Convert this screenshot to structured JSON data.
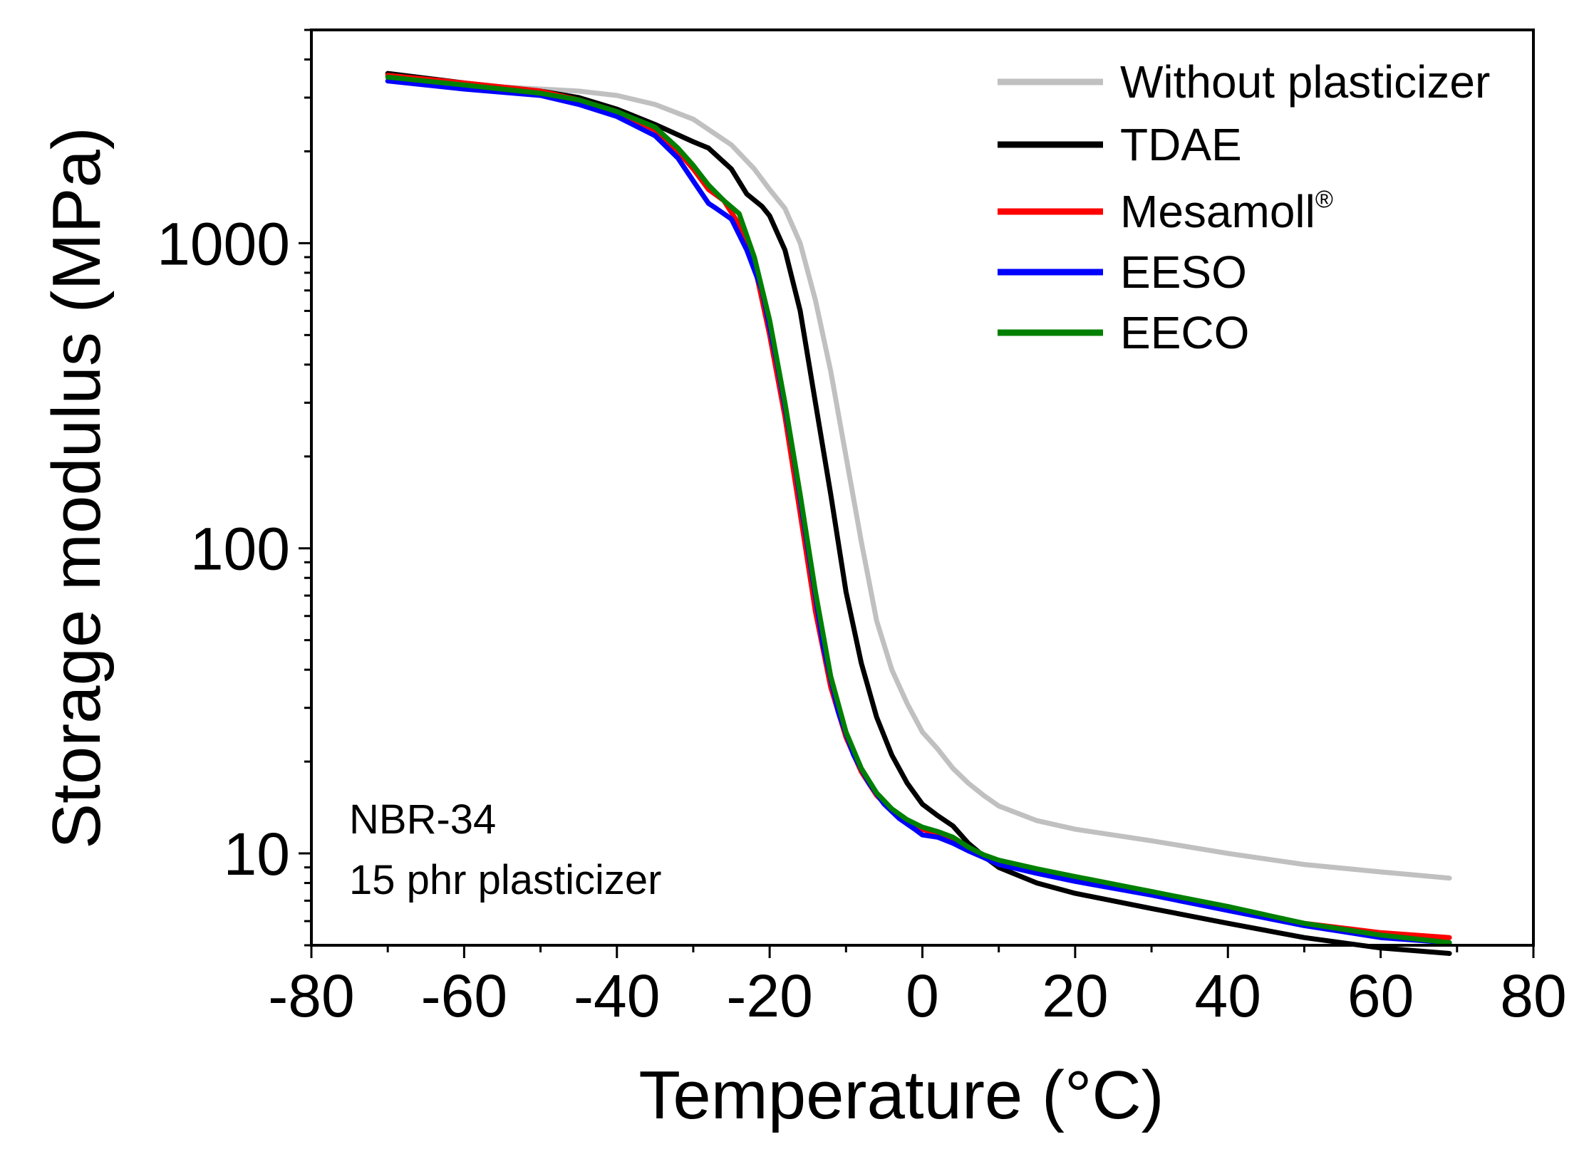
{
  "chart_data": {
    "type": "line",
    "title": "",
    "xlabel": "Temperature (°C)",
    "ylabel": "Storage modulus (MPa)",
    "xlim": [
      -80,
      80
    ],
    "ylim": [
      5,
      5000
    ],
    "yscale": "log",
    "x_ticks": [
      "-80",
      "-60",
      "-40",
      "-20",
      "0",
      "20",
      "40",
      "60",
      "80"
    ],
    "y_ticks": [
      "10",
      "100",
      "1000"
    ],
    "legend": {
      "position": "top-right"
    },
    "annotation": {
      "line1": "NBR-34",
      "line2": "15 phr plasticizer"
    },
    "series": [
      {
        "name": "Without plasticizer",
        "label_superscript": "",
        "color": "#c0c0c0",
        "points": [
          [
            -70,
            3400
          ],
          [
            -60,
            3300
          ],
          [
            -50,
            3200
          ],
          [
            -45,
            3150
          ],
          [
            -40,
            3050
          ],
          [
            -35,
            2850
          ],
          [
            -30,
            2550
          ],
          [
            -25,
            2100
          ],
          [
            -22,
            1750
          ],
          [
            -20,
            1500
          ],
          [
            -18,
            1300
          ],
          [
            -16,
            1000
          ],
          [
            -14,
            650
          ],
          [
            -12,
            380
          ],
          [
            -10,
            200
          ],
          [
            -8,
            105
          ],
          [
            -6,
            58
          ],
          [
            -4,
            40
          ],
          [
            -2,
            31
          ],
          [
            0,
            25
          ],
          [
            2,
            22
          ],
          [
            4,
            19
          ],
          [
            6,
            17
          ],
          [
            8,
            15.5
          ],
          [
            10,
            14.3
          ],
          [
            15,
            12.8
          ],
          [
            20,
            12.0
          ],
          [
            30,
            11.0
          ],
          [
            40,
            10.0
          ],
          [
            50,
            9.2
          ],
          [
            60,
            8.7
          ],
          [
            69,
            8.3
          ]
        ]
      },
      {
        "name": "TDAE",
        "label_superscript": "",
        "color": "#000000",
        "points": [
          [
            -70,
            3600
          ],
          [
            -60,
            3350
          ],
          [
            -50,
            3150
          ],
          [
            -45,
            3000
          ],
          [
            -40,
            2750
          ],
          [
            -35,
            2450
          ],
          [
            -30,
            2150
          ],
          [
            -28,
            2050
          ],
          [
            -25,
            1750
          ],
          [
            -23,
            1450
          ],
          [
            -21,
            1320
          ],
          [
            -20,
            1230
          ],
          [
            -18,
            950
          ],
          [
            -16,
            600
          ],
          [
            -14,
            300
          ],
          [
            -12,
            150
          ],
          [
            -10,
            72
          ],
          [
            -8,
            42
          ],
          [
            -6,
            28
          ],
          [
            -4,
            21
          ],
          [
            -2,
            17
          ],
          [
            0,
            14.5
          ],
          [
            2,
            13.3
          ],
          [
            4,
            12.3
          ],
          [
            6,
            10.8
          ],
          [
            8,
            9.8
          ],
          [
            10,
            9.0
          ],
          [
            15,
            8.0
          ],
          [
            20,
            7.4
          ],
          [
            30,
            6.6
          ],
          [
            40,
            5.9
          ],
          [
            50,
            5.3
          ],
          [
            60,
            4.9
          ],
          [
            69,
            4.7
          ]
        ]
      },
      {
        "name": "Mesamoll",
        "label_superscript": "®",
        "color": "#ff0000",
        "points": [
          [
            -70,
            3550
          ],
          [
            -60,
            3350
          ],
          [
            -50,
            3150
          ],
          [
            -45,
            2950
          ],
          [
            -40,
            2700
          ],
          [
            -35,
            2350
          ],
          [
            -32,
            2000
          ],
          [
            -30,
            1750
          ],
          [
            -28,
            1500
          ],
          [
            -26,
            1380
          ],
          [
            -24,
            1150
          ],
          [
            -22,
            850
          ],
          [
            -20,
            500
          ],
          [
            -18,
            270
          ],
          [
            -16,
            130
          ],
          [
            -14,
            62
          ],
          [
            -12,
            35
          ],
          [
            -10,
            24
          ],
          [
            -8,
            18.5
          ],
          [
            -6,
            15.5
          ],
          [
            -4,
            13.8
          ],
          [
            -2,
            12.8
          ],
          [
            0,
            12.0
          ],
          [
            2,
            11.6
          ],
          [
            4,
            11.1
          ],
          [
            6,
            10.3
          ],
          [
            8,
            9.8
          ],
          [
            10,
            9.4
          ],
          [
            15,
            8.8
          ],
          [
            20,
            8.3
          ],
          [
            30,
            7.5
          ],
          [
            40,
            6.6
          ],
          [
            50,
            5.9
          ],
          [
            60,
            5.5
          ],
          [
            69,
            5.3
          ]
        ]
      },
      {
        "name": "EESO",
        "label_superscript": "",
        "color": "#0000ff",
        "points": [
          [
            -70,
            3400
          ],
          [
            -60,
            3200
          ],
          [
            -50,
            3050
          ],
          [
            -45,
            2850
          ],
          [
            -40,
            2600
          ],
          [
            -35,
            2250
          ],
          [
            -32,
            1900
          ],
          [
            -30,
            1600
          ],
          [
            -28,
            1350
          ],
          [
            -27,
            1300
          ],
          [
            -25,
            1200
          ],
          [
            -23,
            950
          ],
          [
            -21,
            700
          ],
          [
            -19,
            400
          ],
          [
            -17,
            210
          ],
          [
            -15,
            100
          ],
          [
            -13,
            48
          ],
          [
            -11,
            29
          ],
          [
            -9,
            21
          ],
          [
            -7,
            17
          ],
          [
            -5,
            14.5
          ],
          [
            -3,
            13
          ],
          [
            -1,
            12
          ],
          [
            0,
            11.5
          ],
          [
            2,
            11.3
          ],
          [
            4,
            10.8
          ],
          [
            6,
            10.2
          ],
          [
            8,
            9.7
          ],
          [
            10,
            9.2
          ],
          [
            15,
            8.6
          ],
          [
            20,
            8.1
          ],
          [
            30,
            7.3
          ],
          [
            40,
            6.5
          ],
          [
            50,
            5.8
          ],
          [
            60,
            5.3
          ],
          [
            69,
            5.1
          ]
        ]
      },
      {
        "name": "EECO",
        "label_superscript": "",
        "color": "#008000",
        "points": [
          [
            -70,
            3500
          ],
          [
            -60,
            3300
          ],
          [
            -50,
            3100
          ],
          [
            -45,
            2950
          ],
          [
            -40,
            2700
          ],
          [
            -35,
            2400
          ],
          [
            -32,
            2050
          ],
          [
            -30,
            1800
          ],
          [
            -28,
            1550
          ],
          [
            -26,
            1380
          ],
          [
            -24,
            1250
          ],
          [
            -22,
            900
          ],
          [
            -20,
            560
          ],
          [
            -18,
            300
          ],
          [
            -16,
            150
          ],
          [
            -14,
            72
          ],
          [
            -12,
            38
          ],
          [
            -10,
            25
          ],
          [
            -8,
            19
          ],
          [
            -6,
            15.8
          ],
          [
            -4,
            14
          ],
          [
            -2,
            12.9
          ],
          [
            0,
            12.2
          ],
          [
            2,
            11.8
          ],
          [
            4,
            11.3
          ],
          [
            6,
            10.5
          ],
          [
            8,
            9.9
          ],
          [
            10,
            9.5
          ],
          [
            15,
            8.9
          ],
          [
            20,
            8.4
          ],
          [
            30,
            7.5
          ],
          [
            40,
            6.7
          ],
          [
            50,
            5.9
          ],
          [
            60,
            5.4
          ],
          [
            69,
            5.1
          ]
        ]
      }
    ]
  }
}
